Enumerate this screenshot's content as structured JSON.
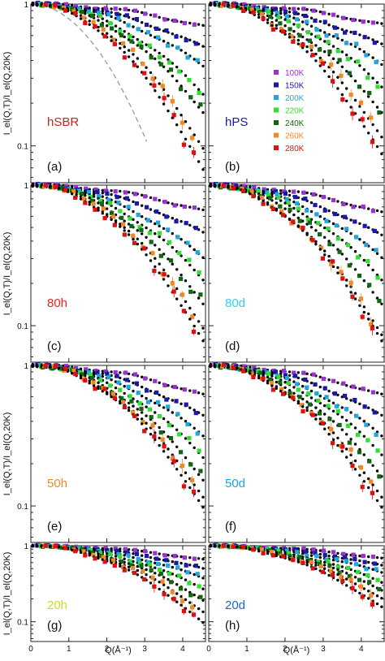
{
  "chart_data": {
    "type": "scatter",
    "layout": "4x2 grid",
    "ylabel": "I_el(Q,T)/I_el(Q,20K)",
    "xlabel": "Q(Å⁻¹)",
    "x_ticks": [
      "0",
      "1",
      "2",
      "3",
      "4"
    ],
    "xlim": [
      0,
      4.6
    ],
    "yscale": "log",
    "ylim": [
      0.055,
      1.0
    ],
    "y_ticks": [
      {
        "value": 1,
        "label": "1"
      },
      {
        "value": 0.1,
        "label": "0.1"
      }
    ],
    "legend": {
      "placement": "panel-b left",
      "entries": [
        {
          "label": "100K",
          "color": "#9933cc"
        },
        {
          "label": "150K",
          "color": "#1a1aa6"
        },
        {
          "label": "200K",
          "color": "#22a7dd"
        },
        {
          "label": "220K",
          "color": "#33dd33"
        },
        {
          "label": "240K",
          "color": "#116611"
        },
        {
          "label": "260K",
          "color": "#f08a26"
        },
        {
          "label": "280K",
          "color": "#dd1111"
        }
      ]
    },
    "temperatures_K": [
      100,
      150,
      200,
      220,
      240,
      260,
      280
    ],
    "panels": [
      {
        "letter": "(a)",
        "sample": "hSBR",
        "sample_color": "#cc2222",
        "final_values": [
          0.7,
          0.5,
          0.37,
          0.24,
          0.18,
          0.1,
          0.07
        ],
        "dashed_curve": true
      },
      {
        "letter": "(b)",
        "sample": "hPS",
        "sample_color": "#1a1aa6",
        "final_values": [
          0.72,
          0.52,
          0.38,
          0.27,
          0.18,
          0.12,
          0.09
        ],
        "dashed_curve": false
      },
      {
        "letter": "(c)",
        "sample": "80h",
        "sample_color": "#ee2222",
        "final_values": [
          0.66,
          0.46,
          0.31,
          0.22,
          0.15,
          0.1,
          0.08
        ],
        "dashed_curve": false
      },
      {
        "letter": "(d)",
        "sample": "80d",
        "sample_color": "#33ccee",
        "final_values": [
          0.64,
          0.44,
          0.31,
          0.22,
          0.15,
          0.09,
          0.08
        ],
        "dashed_curve": false
      },
      {
        "letter": "(e)",
        "sample": "50h",
        "sample_color": "#f08a26",
        "final_values": [
          0.62,
          0.44,
          0.32,
          0.23,
          0.16,
          0.12,
          0.1
        ],
        "dashed_curve": false
      },
      {
        "letter": "(f)",
        "sample": "50d",
        "sample_color": "#1aa6dd",
        "final_values": [
          0.62,
          0.44,
          0.32,
          0.24,
          0.17,
          0.12,
          0.1
        ],
        "dashed_curve": false
      },
      {
        "letter": "(g)",
        "sample": "20h",
        "sample_color": "#ccdd22",
        "final_values": [
          0.66,
          0.5,
          0.38,
          0.28,
          0.2,
          0.14,
          0.1
        ],
        "dashed_curve": false
      },
      {
        "letter": "(h)",
        "sample": "20d",
        "sample_color": "#1a66cc",
        "final_values": [
          0.68,
          0.55,
          0.45,
          0.34,
          0.27,
          0.21,
          0.16
        ],
        "dashed_curve": false
      }
    ]
  }
}
